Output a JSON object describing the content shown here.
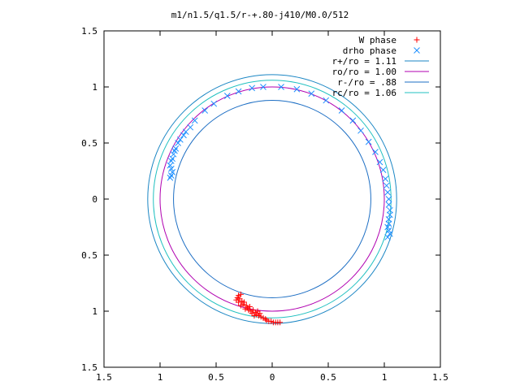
{
  "chart_data": {
    "type": "scatter",
    "title": "m1/n1.5/q1.5/r-+.80-j410/M0.0/512",
    "xlabel": "",
    "ylabel": "",
    "xlim": [
      -1.5,
      1.5
    ],
    "ylim": [
      -1.5,
      1.5
    ],
    "x_ticks": [
      "1.5",
      "1",
      "0.5",
      "0",
      "0.5",
      "1",
      "1.5"
    ],
    "y_ticks": [
      "1.5",
      "1",
      "0.5",
      "0",
      "0.5",
      "1",
      "1.5"
    ],
    "x_tick_values": [
      -1.5,
      -1,
      -0.5,
      0,
      0.5,
      1,
      1.5
    ],
    "y_tick_values": [
      1.5,
      1,
      0.5,
      0,
      -0.5,
      -1,
      -1.5
    ],
    "grid": false,
    "legend_position": "top-right",
    "series": [
      {
        "name": "W phase",
        "kind": "points",
        "marker": "+",
        "color": "#ff0000",
        "points": [
          [
            -0.3,
            -0.86
          ],
          [
            -0.31,
            -0.88
          ],
          [
            -0.28,
            -0.85
          ],
          [
            -0.29,
            -0.89
          ],
          [
            -0.32,
            -0.9
          ],
          [
            -0.27,
            -0.91
          ],
          [
            -0.3,
            -0.92
          ],
          [
            -0.25,
            -0.92
          ],
          [
            -0.26,
            -0.94
          ],
          [
            -0.23,
            -0.95
          ],
          [
            -0.28,
            -0.95
          ],
          [
            -0.22,
            -0.97
          ],
          [
            -0.2,
            -0.96
          ],
          [
            -0.24,
            -0.98
          ],
          [
            -0.19,
            -1.0
          ],
          [
            -0.17,
            -0.99
          ],
          [
            -0.15,
            -1.01
          ],
          [
            -0.18,
            -1.02
          ],
          [
            -0.14,
            -1.03
          ],
          [
            -0.12,
            -1.04
          ],
          [
            -0.1,
            -1.05
          ],
          [
            -0.11,
            -1.02
          ],
          [
            -0.08,
            -1.06
          ],
          [
            -0.06,
            -1.07
          ],
          [
            -0.05,
            -1.08
          ],
          [
            -0.03,
            -1.09
          ],
          [
            -0.01,
            -1.09
          ],
          [
            0.01,
            -1.1
          ],
          [
            0.03,
            -1.1
          ],
          [
            0.05,
            -1.1
          ],
          [
            0.07,
            -1.1
          ],
          [
            -0.13,
            -1.0
          ],
          [
            -0.21,
            -0.99
          ],
          [
            -0.16,
            -1.04
          ]
        ]
      },
      {
        "name": "drho phase",
        "kind": "points",
        "marker": "x",
        "color": "#1e90ff",
        "points": [
          [
            -0.9,
            0.34
          ],
          [
            -0.91,
            0.3
          ],
          [
            -0.9,
            0.27
          ],
          [
            -0.89,
            0.24
          ],
          [
            -0.9,
            0.21
          ],
          [
            -0.91,
            0.19
          ],
          [
            -0.89,
            0.36
          ],
          [
            -0.88,
            0.4
          ],
          [
            -0.87,
            0.43
          ],
          [
            -0.86,
            0.45
          ],
          [
            -0.84,
            0.5
          ],
          [
            -0.82,
            0.53
          ],
          [
            -0.79,
            0.57
          ],
          [
            -0.77,
            0.6
          ],
          [
            -0.73,
            0.64
          ],
          [
            -0.69,
            0.7
          ],
          [
            -0.6,
            0.79
          ],
          [
            -0.52,
            0.85
          ],
          [
            -0.4,
            0.92
          ],
          [
            -0.3,
            0.96
          ],
          [
            -0.18,
            0.99
          ],
          [
            -0.08,
            1.0
          ],
          [
            0.08,
            1.0
          ],
          [
            0.22,
            0.98
          ],
          [
            0.35,
            0.94
          ],
          [
            0.48,
            0.88
          ],
          [
            0.62,
            0.79
          ],
          [
            0.72,
            0.7
          ],
          [
            0.79,
            0.61
          ],
          [
            0.86,
            0.51
          ],
          [
            0.92,
            0.42
          ],
          [
            0.96,
            0.33
          ],
          [
            0.99,
            0.26
          ],
          [
            1.01,
            0.18
          ],
          [
            1.02,
            0.12
          ],
          [
            1.03,
            0.06
          ],
          [
            1.04,
            0.0
          ],
          [
            1.04,
            -0.05
          ],
          [
            1.05,
            -0.1
          ],
          [
            1.05,
            -0.14
          ],
          [
            1.04,
            -0.18
          ],
          [
            1.04,
            -0.22
          ],
          [
            1.03,
            -0.25
          ],
          [
            1.04,
            -0.28
          ],
          [
            1.05,
            -0.31
          ],
          [
            1.03,
            -0.34
          ]
        ]
      },
      {
        "name": "r+/ro = 1.11",
        "kind": "circle",
        "radius": 1.11,
        "color": "#1b86c4"
      },
      {
        "name": "ro/ro = 1.00",
        "kind": "circle",
        "radius": 1.0,
        "color": "#b000b0"
      },
      {
        "name": "r-/ro = .88",
        "kind": "circle",
        "radius": 0.88,
        "color": "#1e6fc4"
      },
      {
        "name": "rc/ro = 1.06",
        "kind": "circle",
        "radius": 1.06,
        "color": "#20c0c0"
      }
    ]
  }
}
